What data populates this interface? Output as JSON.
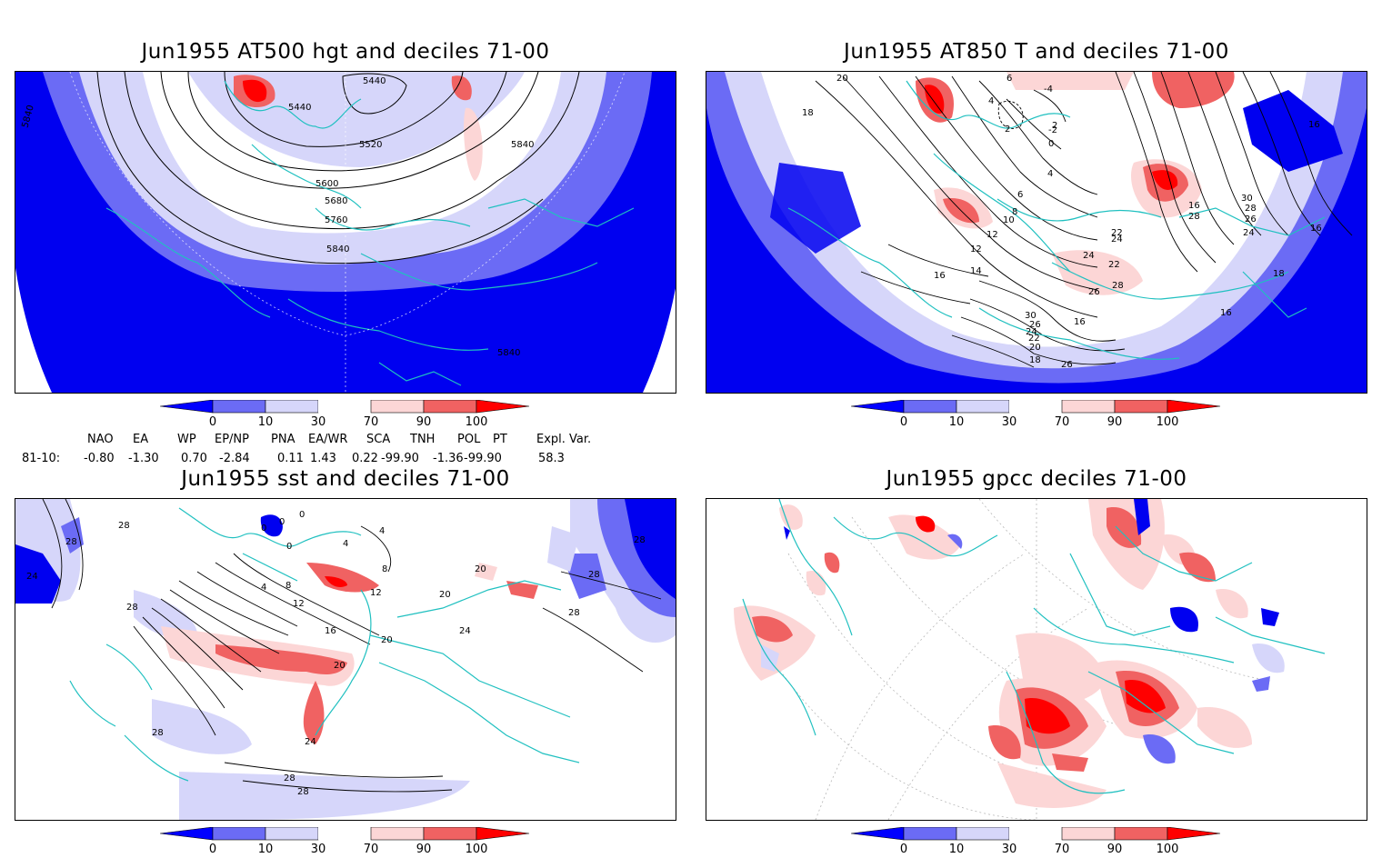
{
  "panels": [
    {
      "title": "Jun1955 AT500 hgt and deciles 71-00",
      "contour_labels": [
        "5440",
        "5440",
        "5520",
        "5600",
        "5680",
        "5760",
        "5840",
        "5840",
        "5840",
        "5840"
      ]
    },
    {
      "title": "Jun1955 AT850 T and deciles 71-00",
      "contour_labels": [
        "20",
        "18",
        "6",
        "4",
        "2",
        "0",
        "-2",
        "-4",
        "2",
        "4",
        "6",
        "8",
        "10",
        "12",
        "12",
        "14",
        "16",
        "16",
        "16",
        "18",
        "16",
        "28",
        "26",
        "24",
        "24",
        "22",
        "22",
        "24",
        "28",
        "26",
        "30",
        "26",
        "24",
        "22",
        "20",
        "18",
        "16",
        "30",
        "28",
        "26",
        "16"
      ]
    },
    {
      "title": "Jun1955 sst and deciles 71-00",
      "contour_labels": [
        "28",
        "28",
        "24",
        "28",
        "0",
        "0",
        "0",
        "0",
        "4",
        "8",
        "12",
        "16",
        "20",
        "24",
        "28",
        "20",
        "20",
        "24",
        "20",
        "28",
        "28",
        "28",
        "28",
        "28",
        "4",
        "12",
        "4",
        "8"
      ]
    },
    {
      "title": "Jun1955 gpcc deciles 71-00",
      "contour_labels": []
    }
  ],
  "colorbar": {
    "ticks": [
      "0",
      "10",
      "30",
      "70",
      "90",
      "100"
    ],
    "colors": [
      "#0000ff",
      "#6b6bf5",
      "#d6d6fa",
      "#ffffff",
      "#fcd6d6",
      "#f06262",
      "#ff0000"
    ]
  },
  "indices": {
    "row_label": "81-10:",
    "names": [
      "NAO",
      "EA",
      "WP",
      "EP/NP",
      "PNA",
      "EA/WR",
      "SCA",
      "TNH",
      "POL",
      "PT",
      "Expl. Var."
    ],
    "values": [
      "-0.80",
      "-1.30",
      "0.70",
      "-2.84",
      "0.11",
      "1.43",
      "0.22",
      "-99.90",
      "-1.36",
      "-99.90",
      "58.3"
    ]
  },
  "colors": {
    "coastline": "#20c0c0",
    "contour": "#000000",
    "frame": "#000000"
  }
}
